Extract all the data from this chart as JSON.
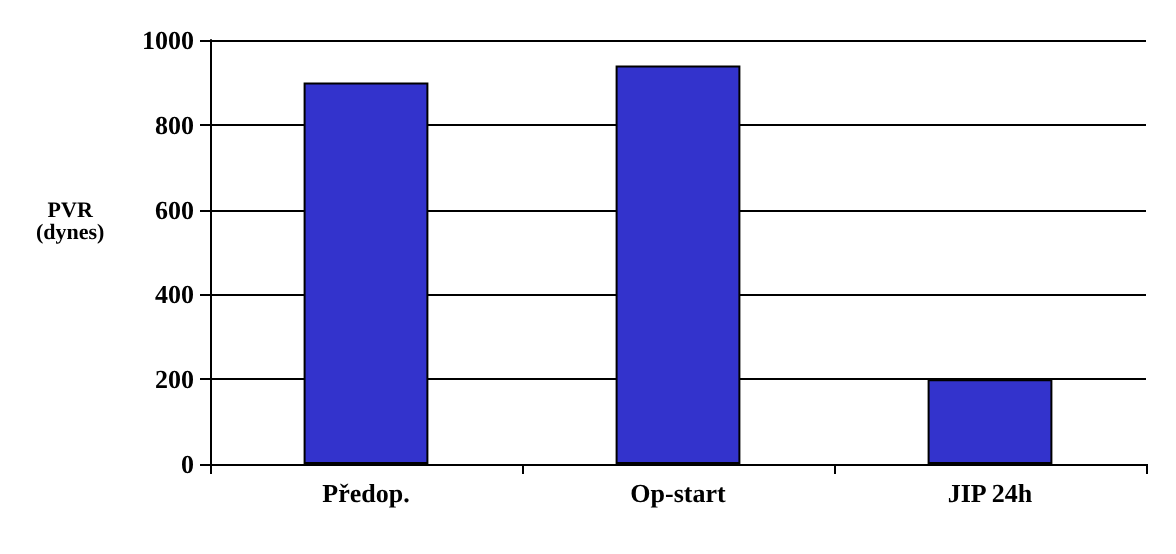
{
  "chart_data": {
    "type": "bar",
    "ylabel": "PVR\n(dynes)",
    "categories": [
      "Předop.",
      "Op-start",
      "JIP 24h"
    ],
    "values": [
      900,
      940,
      200
    ],
    "color": "#3333cc",
    "ylim": [
      0,
      1000
    ],
    "yticks": [
      0,
      200,
      400,
      600,
      800,
      1000
    ],
    "grid": "y"
  }
}
